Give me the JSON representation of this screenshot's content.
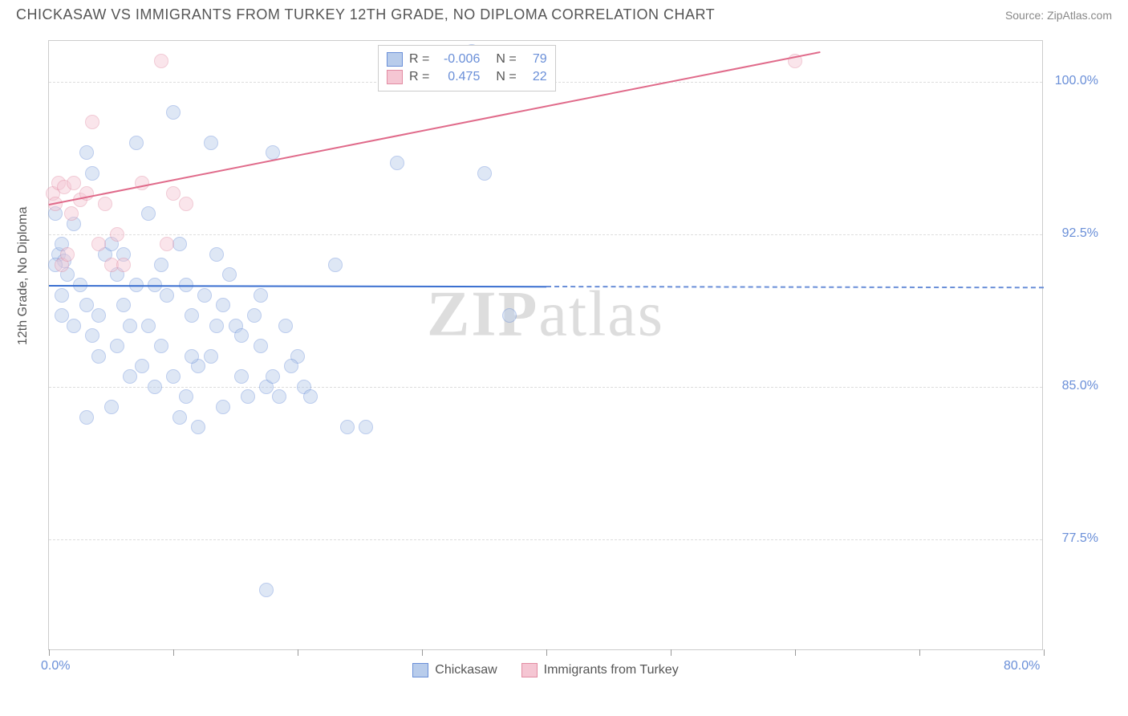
{
  "title": "CHICKASAW VS IMMIGRANTS FROM TURKEY 12TH GRADE, NO DIPLOMA CORRELATION CHART",
  "source": "Source: ZipAtlas.com",
  "watermark_a": "ZIP",
  "watermark_b": "atlas",
  "chart": {
    "type": "scatter",
    "background_color": "#ffffff",
    "grid_color": "#dddddd",
    "border_color": "#cccccc",
    "xlim": [
      0,
      80
    ],
    "ylim": [
      72,
      102
    ],
    "xticks": [
      0,
      10,
      20,
      30,
      40,
      50,
      60,
      70,
      80
    ],
    "yticks": [
      77.5,
      85.0,
      92.5,
      100.0
    ],
    "xtick_labels": {
      "0": "0.0%",
      "80": "80.0%"
    },
    "ytick_labels": [
      "77.5%",
      "85.0%",
      "92.5%",
      "100.0%"
    ],
    "ylabel": "12th Grade, No Diploma",
    "label_fontsize": 16,
    "tick_fontsize": 16,
    "tick_color": "#6a8fd8",
    "marker_radius": 9,
    "marker_opacity": 0.45,
    "series": [
      {
        "name": "Chickasaw",
        "color": "#6a8fd8",
        "fill": "#b8cceb",
        "R": "-0.006",
        "N": "79",
        "trend": {
          "x1": 0,
          "y1": 90.0,
          "x2": 40,
          "y2": 89.95,
          "extrapolate_x2": 80,
          "color": "#3a6fd0",
          "dash_color": "#6a8fd8"
        },
        "points": [
          [
            0.5,
            93.5
          ],
          [
            0.8,
            91.5
          ],
          [
            1.0,
            92.0
          ],
          [
            1.2,
            91.2
          ],
          [
            1.5,
            90.5
          ],
          [
            0.5,
            91.0
          ],
          [
            1.0,
            89.5
          ],
          [
            2.0,
            93.0
          ],
          [
            3.0,
            96.5
          ],
          [
            3.5,
            95.5
          ],
          [
            4.5,
            91.5
          ],
          [
            2.5,
            90.0
          ],
          [
            3.0,
            89.0
          ],
          [
            4.0,
            88.5
          ],
          [
            5.0,
            92.0
          ],
          [
            5.5,
            90.5
          ],
          [
            6.0,
            89.0
          ],
          [
            6.5,
            88.0
          ],
          [
            4.0,
            86.5
          ],
          [
            5.0,
            84.0
          ],
          [
            3.0,
            83.5
          ],
          [
            7.0,
            97.0
          ],
          [
            8.0,
            93.5
          ],
          [
            8.5,
            90.0
          ],
          [
            9.0,
            91.0
          ],
          [
            10.0,
            98.5
          ],
          [
            10.5,
            92.0
          ],
          [
            11.0,
            90.0
          ],
          [
            11.5,
            88.5
          ],
          [
            12.0,
            86.0
          ],
          [
            12.5,
            89.5
          ],
          [
            9.0,
            87.0
          ],
          [
            10.0,
            85.5
          ],
          [
            8.0,
            88.0
          ],
          [
            7.5,
            86.0
          ],
          [
            13.0,
            97.0
          ],
          [
            13.5,
            91.5
          ],
          [
            14.0,
            89.0
          ],
          [
            14.5,
            90.5
          ],
          [
            15.0,
            88.0
          ],
          [
            15.5,
            85.5
          ],
          [
            16.0,
            84.5
          ],
          [
            13.0,
            86.5
          ],
          [
            11.0,
            84.5
          ],
          [
            10.5,
            83.5
          ],
          [
            12.0,
            83.0
          ],
          [
            18.0,
            96.5
          ],
          [
            17.0,
            89.5
          ],
          [
            17.5,
            85.0
          ],
          [
            18.5,
            84.5
          ],
          [
            19.0,
            88.0
          ],
          [
            20.0,
            86.5
          ],
          [
            20.5,
            85.0
          ],
          [
            23.0,
            91.0
          ],
          [
            24.0,
            83.0
          ],
          [
            25.5,
            83.0
          ],
          [
            28.0,
            96.0
          ],
          [
            34.0,
            101.5
          ],
          [
            35.0,
            95.5
          ],
          [
            37.0,
            88.5
          ],
          [
            17.5,
            75.0
          ],
          [
            6.0,
            91.5
          ],
          [
            7.0,
            90.0
          ],
          [
            9.5,
            89.5
          ],
          [
            2.0,
            88.0
          ],
          [
            3.5,
            87.5
          ],
          [
            1.0,
            88.5
          ],
          [
            13.5,
            88.0
          ],
          [
            14.0,
            84.0
          ],
          [
            6.5,
            85.5
          ],
          [
            5.5,
            87.0
          ],
          [
            8.5,
            85.0
          ],
          [
            11.5,
            86.5
          ],
          [
            15.5,
            87.5
          ],
          [
            16.5,
            88.5
          ],
          [
            17.0,
            87.0
          ],
          [
            18.0,
            85.5
          ],
          [
            19.5,
            86.0
          ],
          [
            21.0,
            84.5
          ]
        ]
      },
      {
        "name": "Immigrants from Turkey",
        "color": "#e28ca3",
        "fill": "#f5c6d3",
        "R": "0.475",
        "N": "22",
        "trend": {
          "x1": 0,
          "y1": 94.0,
          "x2": 62,
          "y2": 101.5,
          "color": "#e06a8a"
        },
        "points": [
          [
            0.3,
            94.5
          ],
          [
            0.5,
            94.0
          ],
          [
            0.8,
            95.0
          ],
          [
            1.2,
            94.8
          ],
          [
            1.8,
            93.5
          ],
          [
            2.0,
            95.0
          ],
          [
            2.5,
            94.2
          ],
          [
            1.0,
            91.0
          ],
          [
            1.5,
            91.5
          ],
          [
            3.0,
            94.5
          ],
          [
            3.5,
            98.0
          ],
          [
            4.0,
            92.0
          ],
          [
            4.5,
            94.0
          ],
          [
            5.0,
            91.0
          ],
          [
            5.5,
            92.5
          ],
          [
            6.0,
            91.0
          ],
          [
            7.5,
            95.0
          ],
          [
            9.0,
            101.0
          ],
          [
            9.5,
            92.0
          ],
          [
            10.0,
            94.5
          ],
          [
            11.0,
            94.0
          ],
          [
            60.0,
            101.0
          ]
        ]
      }
    ],
    "legend_top": {
      "r_label": "R =",
      "n_label": "N ="
    },
    "legend_bottom": [
      {
        "label": "Chickasaw",
        "fill": "#b8cceb",
        "border": "#6a8fd8"
      },
      {
        "label": "Immigrants from Turkey",
        "fill": "#f5c6d3",
        "border": "#e28ca3"
      }
    ]
  }
}
